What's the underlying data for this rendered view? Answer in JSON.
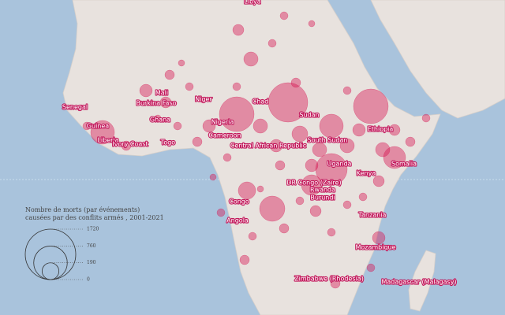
{
  "map": {
    "labels": [
      "Libya",
      "Senegal",
      "Mali",
      "Burkina Faso",
      "Niger",
      "Chad",
      "Sudan",
      "Guinea",
      "Ghana",
      "Nigeria",
      "Liberia",
      "Ivory Coast",
      "Togo",
      "Cameroon",
      "Central African Republic",
      "South Sudan",
      "Ethiopia",
      "Somalia",
      "Uganda",
      "Kenya",
      "DR Congo (Zaïre)",
      "Rwanda",
      "Burundi",
      "Congo",
      "Angola",
      "Tanzania",
      "Mozambique",
      "Zimbabwe (Rhodesia)",
      "Madagascar (Malagasy)"
    ],
    "legend": {
      "title_lines": [
        "Nombre de morts (par événements)",
        "causées par des conflits armés , 2001-2021"
      ],
      "values": [
        1720,
        760,
        190,
        0
      ]
    }
  }
}
